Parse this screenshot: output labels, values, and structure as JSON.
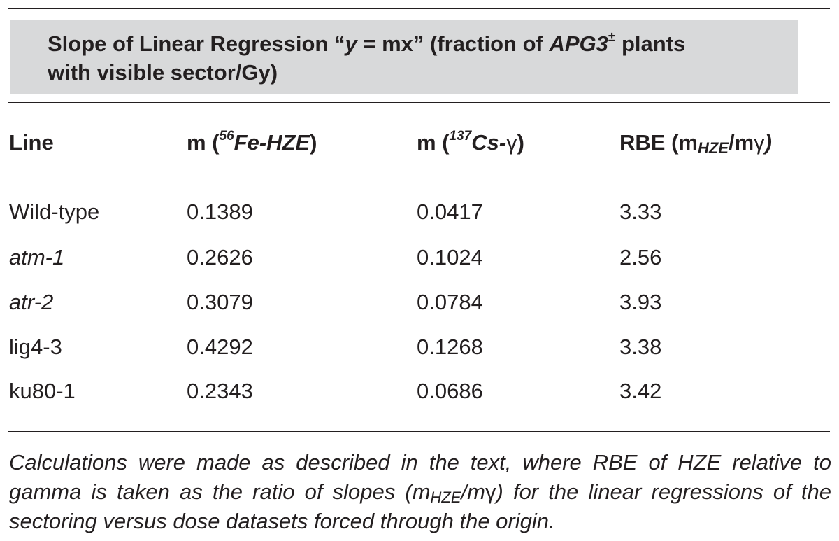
{
  "title": {
    "part1": "Slope of Linear Regression “",
    "var_y": "y",
    "part2": " = mx” (fraction of ",
    "gene": "APG3",
    "superscript": "±",
    "part3": " plants",
    "line2": "with visible sector/Gy)"
  },
  "headers": {
    "line": "Line",
    "m_fe": {
      "prefix": "m (",
      "isotope": "56",
      "label": "Fe-HZE",
      "suffix": ")"
    },
    "m_cs": {
      "prefix": "m (",
      "isotope": "137",
      "label": "Cs-",
      "gamma": "γ",
      "suffix": ")"
    },
    "rbe": {
      "prefix": "RBE (m",
      "sub_hze": "HZE",
      "mid": "/m",
      "gamma": "γ",
      "suffix": ")"
    }
  },
  "rows": [
    {
      "line": "Wild-type",
      "italic": false,
      "m_fe": "0.1389",
      "m_cs": "0.0417",
      "rbe": "3.33"
    },
    {
      "line": "atm-1",
      "italic": true,
      "m_fe": "0.2626",
      "m_cs": "0.1024",
      "rbe": "2.56"
    },
    {
      "line": "atr-2",
      "italic": true,
      "m_fe": "0.3079",
      "m_cs": "0.0784",
      "rbe": "3.93"
    },
    {
      "line": "lig4-3",
      "italic": false,
      "m_fe": "0.4292",
      "m_cs": "0.1268",
      "rbe": "3.38"
    },
    {
      "line": "ku80-1",
      "italic": false,
      "m_fe": "0.2343",
      "m_cs": "0.0686",
      "rbe": "3.42"
    }
  ],
  "footnote": {
    "part1": "Calculations were made as described in the text, where RBE of HZE relative to gamma is taken as the ratio of slopes (m",
    "sub_hze": "HZE",
    "part2": "/m",
    "gamma": "γ",
    "part3": ") for the linear regressions of the sectoring versus dose datasets forced through the origin."
  }
}
